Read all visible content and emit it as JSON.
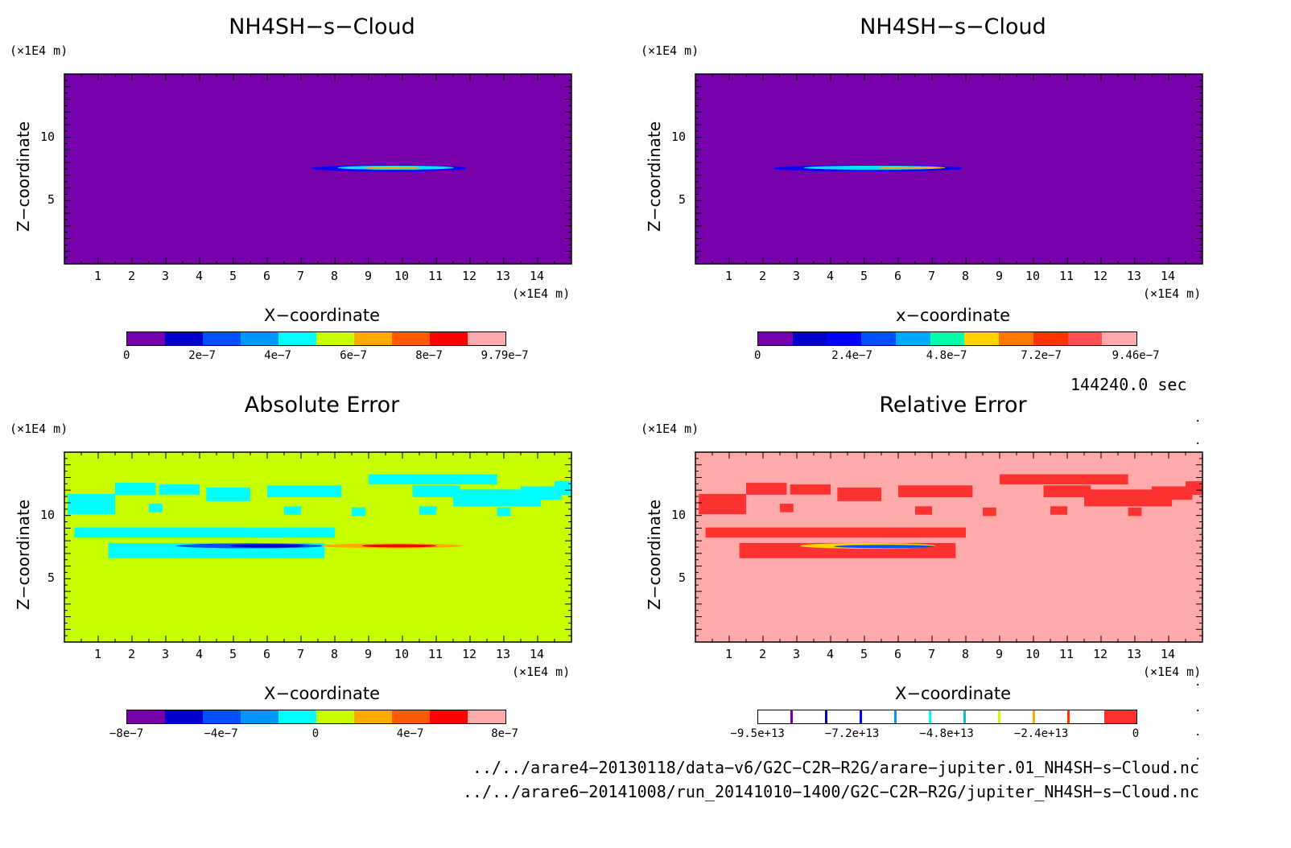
{
  "panels": [
    {
      "title": "NH4SH−s−Cloud",
      "y_unit": "(×1E4 m)",
      "y_label": "Z−coordinate",
      "x_label": "X−coordinate",
      "x_unit": "(×1E4 m)",
      "background": "#7700aa",
      "colorbar_colors": [
        "#7700aa",
        "#0000c8",
        "#0050ff",
        "#0096ff",
        "#00ffff",
        "#c8ff00",
        "#ffaa00",
        "#ff5a00",
        "#ff0000",
        "#ffaaaa"
      ],
      "colorbar_labels": [
        "0",
        "2e−7",
        "4e−7",
        "6e−7",
        "8e−7",
        "9.79e−7"
      ]
    },
    {
      "title": "NH4SH−s−Cloud",
      "y_unit": "(×1E4 m)",
      "y_label": "Z−coordinate",
      "x_label": "x−coordinate",
      "x_unit": "(×1E4 m)",
      "background": "#7700aa",
      "colorbar_colors": [
        "#7700aa",
        "#0000c8",
        "#0000ff",
        "#0050ff",
        "#00aaff",
        "#00ffaa",
        "#ffd200",
        "#ff7800",
        "#ff3200",
        "#ff5050",
        "#ffaaaa"
      ],
      "colorbar_labels": [
        "0",
        "2.4e−7",
        "4.8e−7",
        "7.2e−7",
        "9.46e−7"
      ]
    },
    {
      "title": "Absolute Error",
      "y_unit": "(×1E4 m)",
      "y_label": "Z−coordinate",
      "x_label": "X−coordinate",
      "x_unit": "(×1E4 m)",
      "background": "#c8ff00",
      "colorbar_colors": [
        "#7700aa",
        "#0000c8",
        "#0050ff",
        "#0096ff",
        "#00ffff",
        "#c8ff00",
        "#ffaa00",
        "#ff5a00",
        "#ff0000",
        "#ffaaaa"
      ],
      "colorbar_labels": [
        "−8e−7",
        "−4e−7",
        "0",
        "4e−7",
        "8e−7"
      ]
    },
    {
      "title": "Relative Error",
      "y_unit": "(×1E4 m)",
      "y_label": "Z−coordinate",
      "x_label": "X−coordinate",
      "x_unit": "(×1E4 m)",
      "background": "#ffaaaa",
      "colorbar_colors": [
        "#ffffff",
        "#ffffff",
        "#ffffff",
        "#ffffff",
        "#ffffff",
        "#ffffff",
        "#ffffff",
        "#ffffff",
        "#ffffff",
        "#ffffff",
        "#ff3232"
      ],
      "colorbar_labels": [
        "−9.5e+13",
        "−7.2e+13",
        "−4.8e+13",
        "−2.4e+13",
        "0"
      ]
    }
  ],
  "x_ticks": [
    "1",
    "2",
    "3",
    "4",
    "5",
    "6",
    "7",
    "8",
    "9",
    "10",
    "11",
    "12",
    "13",
    "14"
  ],
  "y_ticks": [
    "5",
    "10"
  ],
  "time_label": "144240.0 sec",
  "footer_lines": [
    "../../arare4−20130118/data−v6/G2C−C2R−R2G/arare−jupiter.01_NH4SH−s−Cloud.nc",
    "../../arare6−20141008/run_20141010−1400/G2C−C2R−R2G/jupiter_NH4SH−s−Cloud.nc"
  ],
  "chart_data": [
    {
      "type": "heatmap",
      "title": "NH4SH−s−Cloud",
      "xlabel": "X−coordinate",
      "ylabel": "Z−coordinate",
      "xlim": [
        0,
        15
      ],
      "ylim": [
        0,
        15
      ],
      "feature": "thin cloud layer near z≈7.5 spanning x≈7.3–11.8, max near x≈10",
      "colorbar_range": [
        0,
        9.79e-07
      ]
    },
    {
      "type": "heatmap",
      "title": "NH4SH−s−Cloud",
      "xlabel": "x−coordinate",
      "ylabel": "Z−coordinate",
      "xlim": [
        0,
        15
      ],
      "ylim": [
        0,
        15
      ],
      "feature": "thin cloud layer near z≈7.5 spanning x≈2.3–7.8, max near x≈6.5",
      "colorbar_range": [
        0,
        9.46e-07
      ]
    },
    {
      "type": "heatmap",
      "title": "Absolute Error",
      "xlabel": "X−coordinate",
      "ylabel": "Z−coordinate",
      "xlim": [
        0,
        15
      ],
      "ylim": [
        0,
        15
      ],
      "colorbar_range": [
        -8e-07,
        8e-07
      ]
    },
    {
      "type": "heatmap",
      "title": "Relative Error",
      "xlabel": "X−coordinate",
      "ylabel": "Z−coordinate",
      "xlim": [
        0,
        15
      ],
      "ylim": [
        0,
        15
      ],
      "colorbar_range": [
        -95000000000000.0,
        0
      ]
    }
  ]
}
